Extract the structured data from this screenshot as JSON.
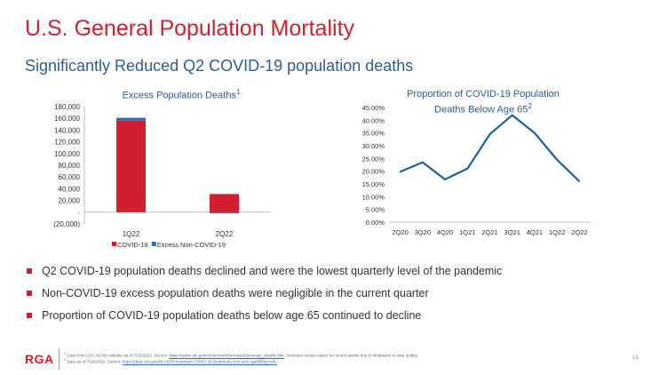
{
  "slide": {
    "title": "U.S. General Population Mortality",
    "subtitle": "Significantly Reduced Q2 COVID-19 population deaths",
    "page_number": "13"
  },
  "left_chart": {
    "title": "Excess Population Deaths",
    "title_sup": "1"
  },
  "right_chart": {
    "title_line1": "Proportion of COVID-19 Population",
    "title_line2": "Deaths Below Age 65",
    "title_sup": "2"
  },
  "colors": {
    "red": "#d0202e",
    "blue": "#2e6db3",
    "line": "#1f5f99",
    "subtitle_blue": "#2c5d8f"
  },
  "chart_data": [
    {
      "type": "bar",
      "stacked": true,
      "categories": [
        "1Q22",
        "2Q22"
      ],
      "series": [
        {
          "name": "COVID-19",
          "values": [
            156000,
            31000
          ],
          "color": "#d0202e"
        },
        {
          "name": "Excess Non-COVID-19",
          "values": [
            5000,
            -2000
          ],
          "color": "#2e6db3"
        }
      ],
      "ylim": [
        -20000,
        180000
      ],
      "y_ticks": [
        -20000,
        0,
        20000,
        40000,
        60000,
        80000,
        100000,
        120000,
        140000,
        160000,
        180000
      ],
      "y_tick_labels": [
        "(20,000)",
        "-",
        "20,000",
        "40,000",
        "60,000",
        "80,000",
        "100,000",
        "120,000",
        "140,000",
        "160,000",
        "180,000"
      ],
      "legend": "bottom",
      "grid": false
    },
    {
      "type": "line",
      "x": [
        "2Q20",
        "3Q20",
        "4Q20",
        "1Q21",
        "2Q21",
        "3Q21",
        "4Q21",
        "1Q22",
        "2Q22"
      ],
      "values": [
        19.8,
        23.5,
        16.8,
        21.0,
        34.5,
        42.0,
        35.0,
        24.5,
        16.0
      ],
      "ylim": [
        0,
        45
      ],
      "y_ticks": [
        0,
        5,
        10,
        15,
        20,
        25,
        30,
        35,
        40,
        45
      ],
      "y_tick_labels": [
        "0.00%",
        "5.00%",
        "10.00%",
        "15.00%",
        "20.00%",
        "25.00%",
        "30.00%",
        "35.00%",
        "40.00%",
        "45.00%"
      ],
      "grid": false
    }
  ],
  "bullets": [
    "Q2 COVID-19 population deaths declined and were the lowest quarterly level of the pandemic",
    "Non-COVID-19 excess population deaths were negligible in the current quarter",
    "Proportion of COVID-19 population deaths below age 65 continued to decline"
  ],
  "footer": {
    "logo": "RGA",
    "fn1_num": "1",
    "fn1_pre": "Data from CDC NCHS website as of 7/15/2022. Source: ",
    "fn1_link": "https://www.cdc.gov/nchs/nvss/vsrr/covid19/excess_deaths.htm",
    "fn1_post": ". Excludes certain states for recent weeks due to limitations in data quality.",
    "fn2_num": "2",
    "fn2_pre": "Data as of 7/20/2022. Source: ",
    "fn2_link": "https://data.cdc.gov/NCHS/Provisional-COVID-19-Deaths-by-Sex-and-Age/9bhg-hcku"
  }
}
